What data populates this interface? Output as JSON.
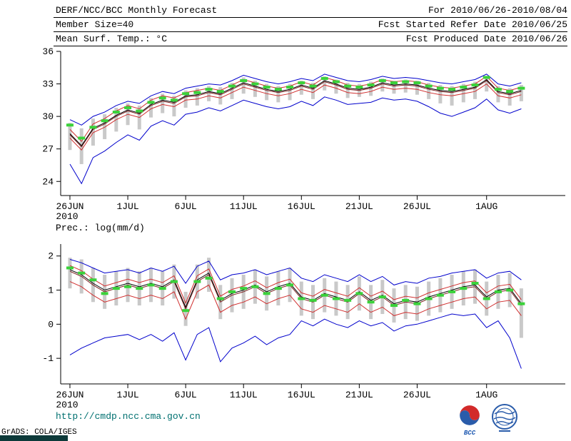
{
  "header": {
    "title": "DERF/NCC/BCC Monthly Forecast",
    "for_range": "For 2010/06/26-2010/08/04",
    "member_size": "Member Size=40",
    "fcst_started": "Fcst Started Refer Date 2010/06/25",
    "temp_label": "Mean Surf. Temp.: °C",
    "fcst_produced": "Fcst Produced Date 2010/06/26"
  },
  "footer": {
    "url": "http://cmdp.ncc.cma.gov.cn",
    "credit": "GrADS: COLA/IGES",
    "bcc_label": "BCC"
  },
  "colors": {
    "ensemble_envelope": "#0000cc",
    "quartile": "#d03030",
    "mean": "#000000",
    "median": "#7a1f1f",
    "dash": "#3ad23a",
    "spread_bar": "#c9c9c9",
    "url_teal": "#007070"
  },
  "chart_data": [
    {
      "type": "line",
      "title": "Mean Surf. Temp.: °C",
      "x_year_label": "2010",
      "x_tick_labels": [
        "26JUN",
        "1JUL",
        "6JUL",
        "11JUL",
        "16JUL",
        "21JUL",
        "26JUL",
        "1AUG"
      ],
      "x_tick_positions": [
        0,
        5,
        10,
        15,
        20,
        25,
        30,
        36
      ],
      "xlim": [
        -0.8,
        42.8
      ],
      "ylim": [
        22.7,
        36
      ],
      "yticks": [
        24,
        27,
        30,
        33,
        36
      ],
      "grid": false,
      "legend": "none",
      "series": [
        {
          "name": "ensemble-max",
          "color": "#0000cc",
          "values": [
            29.7,
            29.2,
            30.0,
            30.4,
            31.0,
            31.4,
            31.2,
            31.9,
            32.3,
            32.1,
            32.6,
            32.8,
            33.0,
            32.9,
            33.3,
            33.8,
            33.5,
            33.2,
            33.0,
            33.2,
            33.5,
            33.3,
            33.9,
            33.6,
            33.3,
            33.2,
            33.4,
            33.7,
            33.5,
            33.6,
            33.5,
            33.3,
            33.1,
            33.0,
            33.2,
            33.4,
            33.9,
            33.0,
            32.8,
            33.1
          ]
        },
        {
          "name": "ensemble-min",
          "color": "#0000cc",
          "values": [
            25.6,
            23.8,
            26.2,
            26.8,
            27.6,
            28.3,
            27.8,
            29.1,
            29.6,
            29.2,
            30.2,
            30.4,
            30.8,
            30.5,
            31.0,
            31.5,
            31.2,
            30.9,
            30.7,
            30.9,
            31.4,
            31.0,
            31.8,
            31.5,
            31.1,
            31.2,
            31.3,
            31.7,
            31.5,
            31.6,
            31.4,
            30.9,
            30.3,
            30.0,
            30.4,
            30.8,
            31.6,
            30.6,
            30.3,
            30.7
          ]
        },
        {
          "name": "upper-quartile",
          "color": "#d03030",
          "values": [
            28.8,
            27.7,
            29.3,
            29.8,
            30.5,
            31.0,
            30.7,
            31.5,
            31.9,
            31.7,
            32.2,
            32.4,
            32.6,
            32.4,
            32.9,
            33.4,
            33.1,
            32.8,
            32.6,
            32.8,
            33.2,
            32.9,
            33.6,
            33.3,
            32.9,
            32.8,
            33.0,
            33.4,
            33.2,
            33.3,
            33.2,
            32.9,
            32.7,
            32.6,
            32.8,
            33.0,
            33.7,
            32.6,
            32.4,
            32.7
          ]
        },
        {
          "name": "lower-quartile",
          "color": "#d03030",
          "values": [
            28.0,
            26.9,
            28.5,
            29.0,
            29.7,
            30.2,
            29.9,
            30.7,
            31.1,
            30.9,
            31.5,
            31.6,
            31.9,
            31.7,
            32.2,
            32.7,
            32.4,
            32.1,
            31.9,
            32.1,
            32.5,
            32.2,
            32.9,
            32.6,
            32.2,
            32.1,
            32.3,
            32.7,
            32.5,
            32.6,
            32.5,
            32.2,
            32.0,
            31.9,
            32.1,
            32.3,
            33.0,
            31.9,
            31.7,
            32.0
          ]
        },
        {
          "name": "ensemble-median",
          "color": "#7a1f1f",
          "values": [
            28.3,
            27.2,
            28.8,
            29.3,
            30.0,
            30.5,
            30.2,
            31.0,
            31.4,
            31.2,
            31.8,
            31.9,
            32.2,
            32.0,
            32.5,
            33.0,
            32.7,
            32.4,
            32.2,
            32.4,
            32.8,
            32.5,
            33.2,
            32.9,
            32.5,
            32.4,
            32.6,
            33.0,
            32.8,
            32.9,
            32.8,
            32.5,
            32.3,
            32.2,
            32.4,
            32.6,
            33.3,
            32.2,
            32.0,
            32.3
          ]
        },
        {
          "name": "ensemble-mean",
          "color": "#000000",
          "values": [
            28.4,
            27.3,
            28.9,
            29.4,
            30.1,
            30.6,
            30.3,
            31.1,
            31.5,
            31.3,
            31.9,
            32.0,
            32.3,
            32.1,
            32.6,
            33.1,
            32.8,
            32.5,
            32.3,
            32.5,
            32.9,
            32.6,
            33.3,
            33.0,
            32.6,
            32.5,
            32.7,
            33.1,
            32.9,
            33.0,
            32.9,
            32.6,
            32.4,
            32.3,
            32.5,
            32.7,
            33.4,
            32.3,
            32.1,
            32.4
          ]
        }
      ],
      "bars": {
        "name": "member-spread-bar",
        "color": "#c9c9c9",
        "top": [
          29.4,
          28.9,
          29.8,
          30.2,
          30.8,
          31.2,
          31.0,
          31.7,
          32.1,
          31.9,
          32.4,
          32.6,
          32.8,
          32.7,
          33.1,
          33.6,
          33.3,
          33.0,
          32.8,
          33.0,
          33.3,
          33.1,
          33.7,
          33.4,
          33.1,
          33.0,
          33.2,
          33.5,
          33.3,
          33.4,
          33.3,
          33.1,
          32.9,
          32.8,
          33.0,
          33.2,
          33.7,
          32.8,
          32.6,
          32.9
        ],
        "bottom": [
          26.9,
          25.6,
          27.3,
          27.9,
          28.6,
          29.2,
          28.8,
          29.9,
          30.3,
          30.0,
          30.8,
          31.0,
          31.4,
          31.1,
          31.6,
          32.1,
          31.8,
          31.5,
          31.3,
          31.5,
          32.0,
          31.6,
          32.4,
          32.1,
          31.7,
          31.8,
          31.9,
          32.3,
          32.1,
          32.2,
          32.0,
          31.6,
          31.2,
          31.0,
          31.3,
          31.6,
          32.3,
          31.3,
          31.0,
          31.4
        ]
      },
      "dashes": {
        "name": "highlight-dash",
        "color": "#3ad23a",
        "values": [
          29.2,
          28.0,
          29.0,
          29.6,
          30.4,
          30.8,
          30.5,
          31.3,
          31.7,
          31.5,
          32.1,
          32.2,
          32.5,
          32.3,
          32.8,
          33.3,
          33.0,
          32.7,
          32.5,
          32.7,
          33.1,
          32.8,
          33.5,
          33.2,
          32.8,
          32.7,
          32.9,
          33.3,
          33.1,
          33.2,
          33.1,
          32.8,
          32.6,
          32.5,
          32.7,
          32.9,
          33.6,
          32.5,
          32.3,
          32.6
        ]
      }
    },
    {
      "type": "line",
      "title": "Prec.: log(mm/d)",
      "x_year_label": "2010",
      "x_tick_labels": [
        "26JUN",
        "1JUL",
        "6JUL",
        "11JUL",
        "16JUL",
        "21JUL",
        "26JUL",
        "1AUG"
      ],
      "x_tick_positions": [
        0,
        5,
        10,
        15,
        20,
        25,
        30,
        36
      ],
      "xlim": [
        -0.8,
        42.8
      ],
      "ylim": [
        -1.75,
        2.35
      ],
      "yticks": [
        -1,
        0,
        1,
        2
      ],
      "grid": false,
      "legend": "none",
      "series": [
        {
          "name": "ensemble-max",
          "color": "#0000cc",
          "values": [
            1.9,
            1.8,
            1.65,
            1.5,
            1.55,
            1.6,
            1.5,
            1.65,
            1.55,
            1.7,
            1.2,
            1.7,
            1.85,
            1.3,
            1.45,
            1.5,
            1.6,
            1.45,
            1.55,
            1.65,
            1.35,
            1.25,
            1.45,
            1.35,
            1.25,
            1.45,
            1.25,
            1.4,
            1.15,
            1.25,
            1.2,
            1.35,
            1.4,
            1.5,
            1.55,
            1.6,
            1.35,
            1.5,
            1.55,
            1.3
          ]
        },
        {
          "name": "ensemble-min",
          "color": "#0000cc",
          "values": [
            -0.9,
            -0.7,
            -0.55,
            -0.4,
            -0.35,
            -0.3,
            -0.45,
            -0.3,
            -0.5,
            -0.25,
            -1.05,
            -0.3,
            -0.1,
            -1.1,
            -0.7,
            -0.55,
            -0.35,
            -0.6,
            -0.4,
            -0.3,
            0.1,
            -0.05,
            0.15,
            0.0,
            -0.1,
            0.1,
            -0.05,
            0.05,
            -0.2,
            -0.05,
            0.0,
            0.1,
            0.2,
            0.3,
            0.25,
            0.3,
            -0.1,
            0.1,
            -0.4,
            -1.3
          ]
        },
        {
          "name": "upper-quartile",
          "color": "#d03030",
          "values": [
            1.72,
            1.57,
            1.32,
            1.12,
            1.22,
            1.32,
            1.22,
            1.32,
            1.22,
            1.42,
            0.62,
            1.42,
            1.62,
            0.82,
            1.02,
            1.12,
            1.27,
            1.07,
            1.22,
            1.32,
            0.92,
            0.82,
            1.02,
            0.92,
            0.82,
            1.07,
            0.82,
            0.97,
            0.72,
            0.82,
            0.77,
            0.92,
            1.02,
            1.12,
            1.22,
            1.27,
            0.92,
            1.12,
            1.17,
            0.72
          ]
        },
        {
          "name": "lower-quartile",
          "color": "#d03030",
          "values": [
            1.25,
            1.1,
            0.85,
            0.65,
            0.75,
            0.85,
            0.75,
            0.85,
            0.75,
            0.95,
            0.15,
            0.95,
            1.15,
            0.35,
            0.55,
            0.65,
            0.8,
            0.6,
            0.75,
            0.85,
            0.45,
            0.35,
            0.55,
            0.45,
            0.35,
            0.6,
            0.35,
            0.5,
            0.25,
            0.35,
            0.3,
            0.45,
            0.55,
            0.65,
            0.75,
            0.8,
            0.45,
            0.65,
            0.7,
            0.25
          ]
        },
        {
          "name": "ensemble-median",
          "color": "#7a1f1f",
          "values": [
            1.55,
            1.4,
            1.15,
            0.95,
            1.05,
            1.15,
            1.05,
            1.15,
            1.05,
            1.25,
            0.45,
            1.25,
            1.45,
            0.65,
            0.85,
            0.95,
            1.1,
            0.9,
            1.05,
            1.15,
            0.75,
            0.65,
            0.85,
            0.75,
            0.65,
            0.9,
            0.65,
            0.8,
            0.55,
            0.65,
            0.6,
            0.75,
            0.85,
            0.95,
            1.05,
            1.1,
            0.75,
            0.95,
            1.0,
            0.55
          ]
        },
        {
          "name": "ensemble-mean",
          "color": "#000000",
          "values": [
            1.6,
            1.45,
            1.2,
            1.0,
            1.1,
            1.2,
            1.1,
            1.2,
            1.1,
            1.3,
            0.5,
            1.3,
            1.5,
            0.7,
            0.9,
            1.0,
            1.15,
            0.95,
            1.1,
            1.2,
            0.8,
            0.7,
            0.9,
            0.8,
            0.7,
            0.95,
            0.7,
            0.85,
            0.6,
            0.7,
            0.65,
            0.8,
            0.9,
            1.0,
            1.1,
            1.15,
            0.8,
            1.0,
            1.05,
            0.6
          ]
        }
      ],
      "bars": {
        "name": "member-spread-bar",
        "color": "#c9c9c9",
        "top": [
          1.95,
          1.9,
          1.65,
          1.45,
          1.55,
          1.65,
          1.55,
          1.65,
          1.55,
          1.75,
          0.95,
          1.75,
          1.95,
          1.15,
          1.35,
          1.45,
          1.6,
          1.4,
          1.55,
          1.65,
          1.25,
          1.15,
          1.35,
          1.25,
          1.15,
          1.4,
          1.15,
          1.3,
          1.05,
          1.15,
          1.1,
          1.25,
          1.35,
          1.45,
          1.55,
          1.6,
          1.25,
          1.45,
          1.5,
          1.05
        ],
        "bottom": [
          1.05,
          0.9,
          0.65,
          0.45,
          0.55,
          0.65,
          0.55,
          0.65,
          0.55,
          0.75,
          -0.05,
          0.75,
          0.95,
          0.15,
          0.35,
          0.45,
          0.6,
          0.4,
          0.55,
          0.65,
          0.25,
          0.15,
          0.35,
          0.25,
          0.15,
          0.4,
          0.15,
          0.3,
          0.05,
          0.15,
          0.1,
          0.25,
          0.35,
          0.45,
          0.55,
          0.6,
          0.25,
          0.45,
          0.5,
          -0.4
        ]
      },
      "dashes": {
        "name": "highlight-dash",
        "color": "#3ad23a",
        "values": [
          1.65,
          1.5,
          1.3,
          0.9,
          1.05,
          1.1,
          1.05,
          1.15,
          1.05,
          1.25,
          0.4,
          1.25,
          1.35,
          0.75,
          0.95,
          1.05,
          1.1,
          0.9,
          1.05,
          1.15,
          0.75,
          0.7,
          0.85,
          0.75,
          0.7,
          0.9,
          0.65,
          0.8,
          0.55,
          0.7,
          0.6,
          0.75,
          0.85,
          0.95,
          1.05,
          1.2,
          0.75,
          0.95,
          1.0,
          0.6
        ]
      }
    }
  ]
}
